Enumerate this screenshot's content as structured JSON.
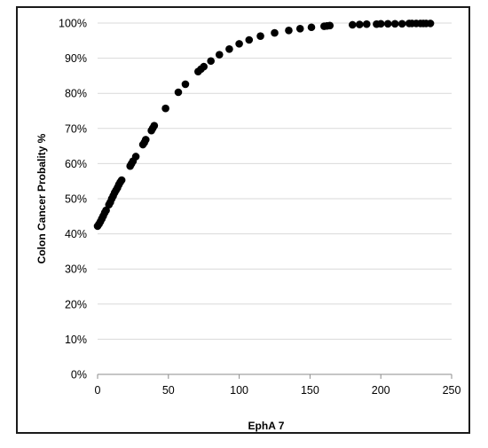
{
  "chart_data": {
    "type": "scatter",
    "title": "",
    "xlabel": "EphA 7",
    "ylabel": "Colon Cancer Probality  %",
    "xlim": [
      0,
      250
    ],
    "ylim": [
      0,
      100
    ],
    "x_ticks": [
      0,
      50,
      100,
      150,
      200,
      250
    ],
    "x_tick_labels": [
      "0",
      "50",
      "100",
      "150",
      "200",
      "250"
    ],
    "y_ticks": [
      0,
      10,
      20,
      30,
      40,
      50,
      60,
      70,
      80,
      90,
      100
    ],
    "y_tick_labels": [
      "0%",
      "10%",
      "20%",
      "30%",
      "40%",
      "50%",
      "60%",
      "70%",
      "80%",
      "90%",
      "100%"
    ],
    "grid": "horizontal",
    "legend": "none",
    "marker_color": "#000000",
    "series": [
      {
        "x": [
          0,
          1,
          2,
          3,
          4,
          5,
          6,
          8,
          9,
          10,
          11,
          12,
          13,
          14,
          15,
          16,
          17,
          23,
          24,
          25,
          27,
          32,
          33,
          34,
          38,
          39,
          40,
          48,
          57,
          62,
          71,
          73,
          75,
          80,
          86,
          93,
          100,
          107,
          115,
          125,
          135,
          143,
          151,
          160,
          162,
          164,
          180,
          185,
          190,
          197,
          200,
          205,
          210,
          215,
          220,
          222,
          225,
          228,
          230,
          232,
          235
        ],
        "y": [
          42.2,
          42.8,
          43.5,
          44.3,
          45.1,
          46.0,
          46.7,
          48.3,
          49.0,
          50.0,
          50.8,
          51.7,
          52.4,
          53.1,
          54.0,
          54.7,
          55.3,
          59.3,
          60.0,
          60.7,
          62.0,
          65.4,
          66.0,
          66.8,
          69.4,
          70.1,
          70.8,
          75.7,
          80.3,
          82.6,
          86.2,
          86.9,
          87.6,
          89.2,
          91.0,
          92.6,
          94.1,
          95.2,
          96.3,
          97.2,
          97.9,
          98.4,
          98.8,
          99.1,
          99.2,
          99.3,
          99.5,
          99.6,
          99.7,
          99.7,
          99.8,
          99.8,
          99.8,
          99.8,
          99.9,
          99.9,
          99.9,
          99.9,
          99.9,
          99.9,
          99.9
        ]
      }
    ]
  }
}
